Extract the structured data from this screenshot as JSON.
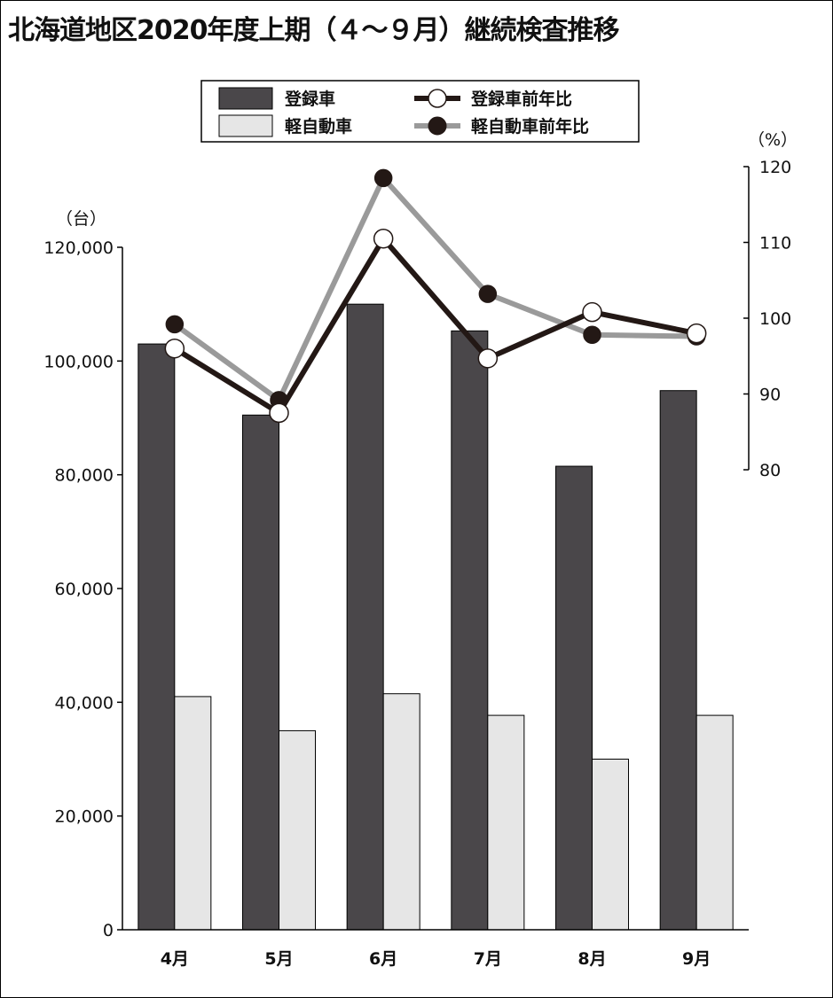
{
  "chart_data": {
    "type": "bar",
    "title": "北海道地区2020年度上期（４～９月）継続検査推移",
    "categories": [
      "4月",
      "5月",
      "6月",
      "7月",
      "8月",
      "9月"
    ],
    "series": [
      {
        "name": "登録車",
        "type": "bar",
        "axis": "left",
        "color": "#4a474a",
        "values": [
          103000,
          90500,
          110000,
          105300,
          81500,
          94800
        ]
      },
      {
        "name": "軽自動車",
        "type": "bar",
        "axis": "left",
        "color": "#e6e6e6",
        "values": [
          41000,
          35000,
          41500,
          37700,
          30000,
          37700
        ]
      },
      {
        "name": "登録車前年比",
        "type": "line",
        "axis": "right",
        "color": "#231815",
        "marker": "open-circle",
        "values": [
          96,
          87.5,
          110.5,
          94.7,
          100.8,
          98
        ]
      },
      {
        "name": "軽自動車前年比",
        "type": "line",
        "axis": "right",
        "color": "#9a9a9a",
        "marker": "filled-circle",
        "values": [
          99.2,
          89.2,
          118.5,
          103.2,
          97.8,
          97.6
        ]
      }
    ],
    "left_axis": {
      "unit": "（台）",
      "range": [
        0,
        120000
      ],
      "ticks": [
        0,
        20000,
        40000,
        60000,
        80000,
        100000,
        120000
      ],
      "tick_labels": [
        "0",
        "20,000",
        "40,000",
        "60,000",
        "80,000",
        "100,000",
        "120,000"
      ]
    },
    "right_axis": {
      "unit": "（%）",
      "range": [
        80,
        120
      ],
      "ticks": [
        80,
        90,
        100,
        110,
        120
      ],
      "tick_labels": [
        "80",
        "90",
        "100",
        "110",
        "120"
      ]
    },
    "grid": false,
    "legend_position": "top-center"
  }
}
